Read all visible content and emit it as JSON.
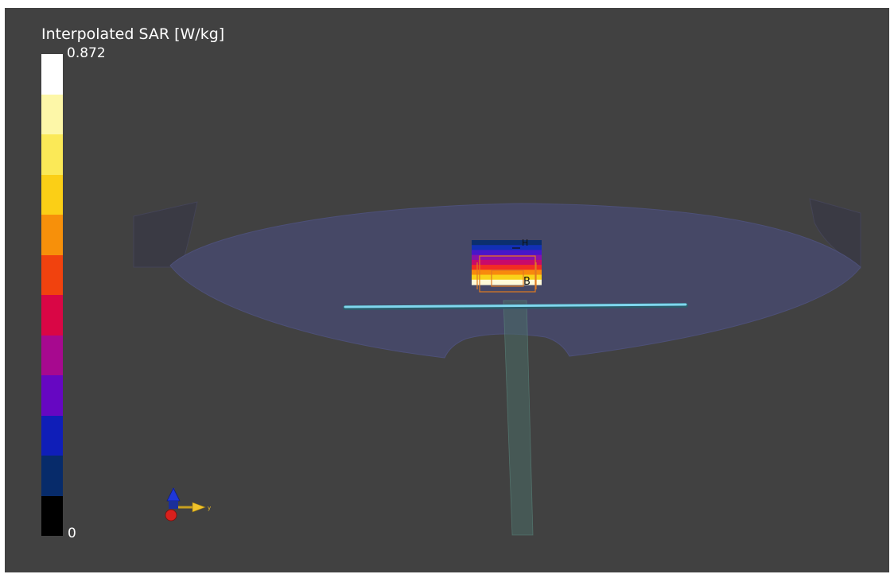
{
  "legend": {
    "title": "Interpolated SAR [W/kg]",
    "max_label": "0.872",
    "min_label": "0",
    "colors": [
      "#ffffff",
      "#fdf7a8",
      "#fbe957",
      "#fbcf16",
      "#f7900a",
      "#f1420e",
      "#d90645",
      "#a7098f",
      "#6607c2",
      "#0f1eb8",
      "#072b6a",
      "#000000"
    ]
  },
  "scene": {
    "background": "#414141",
    "phantom_color": "#464866",
    "probe_color": "#7fd7ee",
    "labels": {
      "top_marker": "H",
      "bottom_marker": "B"
    },
    "axis_label": "y",
    "sar_map_colors": [
      "#0b2f6f",
      "#1230b6",
      "#4816c9",
      "#8a11a8",
      "#c80a6a",
      "#f32d23",
      "#f88a0d",
      "#f9d21a",
      "#fffbd8"
    ]
  }
}
